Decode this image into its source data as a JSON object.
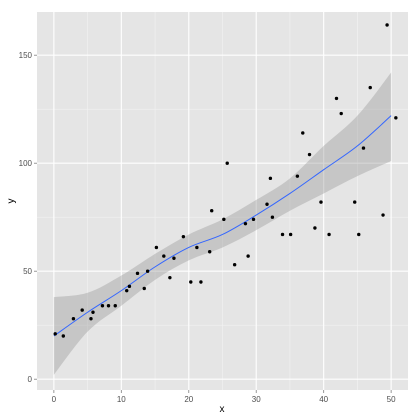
{
  "chart_data": {
    "type": "scatter",
    "xlabel": "x",
    "ylabel": "y",
    "xlim": [
      -2.5,
      52.5
    ],
    "ylim": [
      -5,
      170
    ],
    "x_ticks": [
      0,
      10,
      20,
      30,
      40,
      50
    ],
    "y_ticks": [
      0,
      50,
      100,
      150
    ],
    "grid": true,
    "colors": {
      "panel": "#e5e5e5",
      "grid_major": "#ffffff",
      "grid_minor": "#f2f2f2",
      "points": "#000000",
      "smooth_line": "#3366ff",
      "confidence_band": "#999999"
    },
    "points": [
      {
        "x": 0.2,
        "y": 21
      },
      {
        "x": 1.4,
        "y": 20
      },
      {
        "x": 2.9,
        "y": 28
      },
      {
        "x": 4.2,
        "y": 32
      },
      {
        "x": 5.5,
        "y": 28
      },
      {
        "x": 5.8,
        "y": 31
      },
      {
        "x": 7.2,
        "y": 34
      },
      {
        "x": 8.1,
        "y": 34
      },
      {
        "x": 9.1,
        "y": 34
      },
      {
        "x": 10.8,
        "y": 41
      },
      {
        "x": 11.2,
        "y": 43
      },
      {
        "x": 12.4,
        "y": 49
      },
      {
        "x": 13.4,
        "y": 42
      },
      {
        "x": 13.9,
        "y": 50
      },
      {
        "x": 15.2,
        "y": 61
      },
      {
        "x": 16.3,
        "y": 57
      },
      {
        "x": 17.2,
        "y": 47
      },
      {
        "x": 17.8,
        "y": 56
      },
      {
        "x": 19.2,
        "y": 66
      },
      {
        "x": 20.3,
        "y": 45
      },
      {
        "x": 21.2,
        "y": 61
      },
      {
        "x": 21.8,
        "y": 45
      },
      {
        "x": 23.1,
        "y": 59
      },
      {
        "x": 23.4,
        "y": 78
      },
      {
        "x": 25.2,
        "y": 74
      },
      {
        "x": 25.7,
        "y": 100
      },
      {
        "x": 26.8,
        "y": 53
      },
      {
        "x": 28.4,
        "y": 72
      },
      {
        "x": 28.8,
        "y": 57
      },
      {
        "x": 29.6,
        "y": 74
      },
      {
        "x": 31.6,
        "y": 81
      },
      {
        "x": 32.1,
        "y": 93
      },
      {
        "x": 32.4,
        "y": 75
      },
      {
        "x": 33.9,
        "y": 67
      },
      {
        "x": 35.1,
        "y": 67
      },
      {
        "x": 36.1,
        "y": 94
      },
      {
        "x": 36.9,
        "y": 114
      },
      {
        "x": 37.9,
        "y": 104
      },
      {
        "x": 38.7,
        "y": 70
      },
      {
        "x": 39.6,
        "y": 82
      },
      {
        "x": 40.8,
        "y": 67
      },
      {
        "x": 41.9,
        "y": 130
      },
      {
        "x": 42.6,
        "y": 123
      },
      {
        "x": 44.6,
        "y": 82
      },
      {
        "x": 45.2,
        "y": 67
      },
      {
        "x": 45.9,
        "y": 107
      },
      {
        "x": 46.9,
        "y": 135
      },
      {
        "x": 48.8,
        "y": 76
      },
      {
        "x": 49.4,
        "y": 164
      },
      {
        "x": 50.7,
        "y": 121
      }
    ],
    "smooth": {
      "x": [
        0,
        5,
        10,
        15,
        20,
        25,
        30,
        35,
        40,
        45,
        50
      ],
      "y": [
        20,
        31,
        41,
        52,
        61,
        67,
        76,
        86,
        97,
        108,
        122
      ],
      "lower": [
        2,
        22,
        34,
        46,
        55,
        61,
        69,
        78,
        86,
        94,
        101
      ],
      "upper": [
        38,
        40,
        48,
        58,
        67,
        74,
        83,
        93,
        108,
        122,
        142
      ]
    }
  }
}
